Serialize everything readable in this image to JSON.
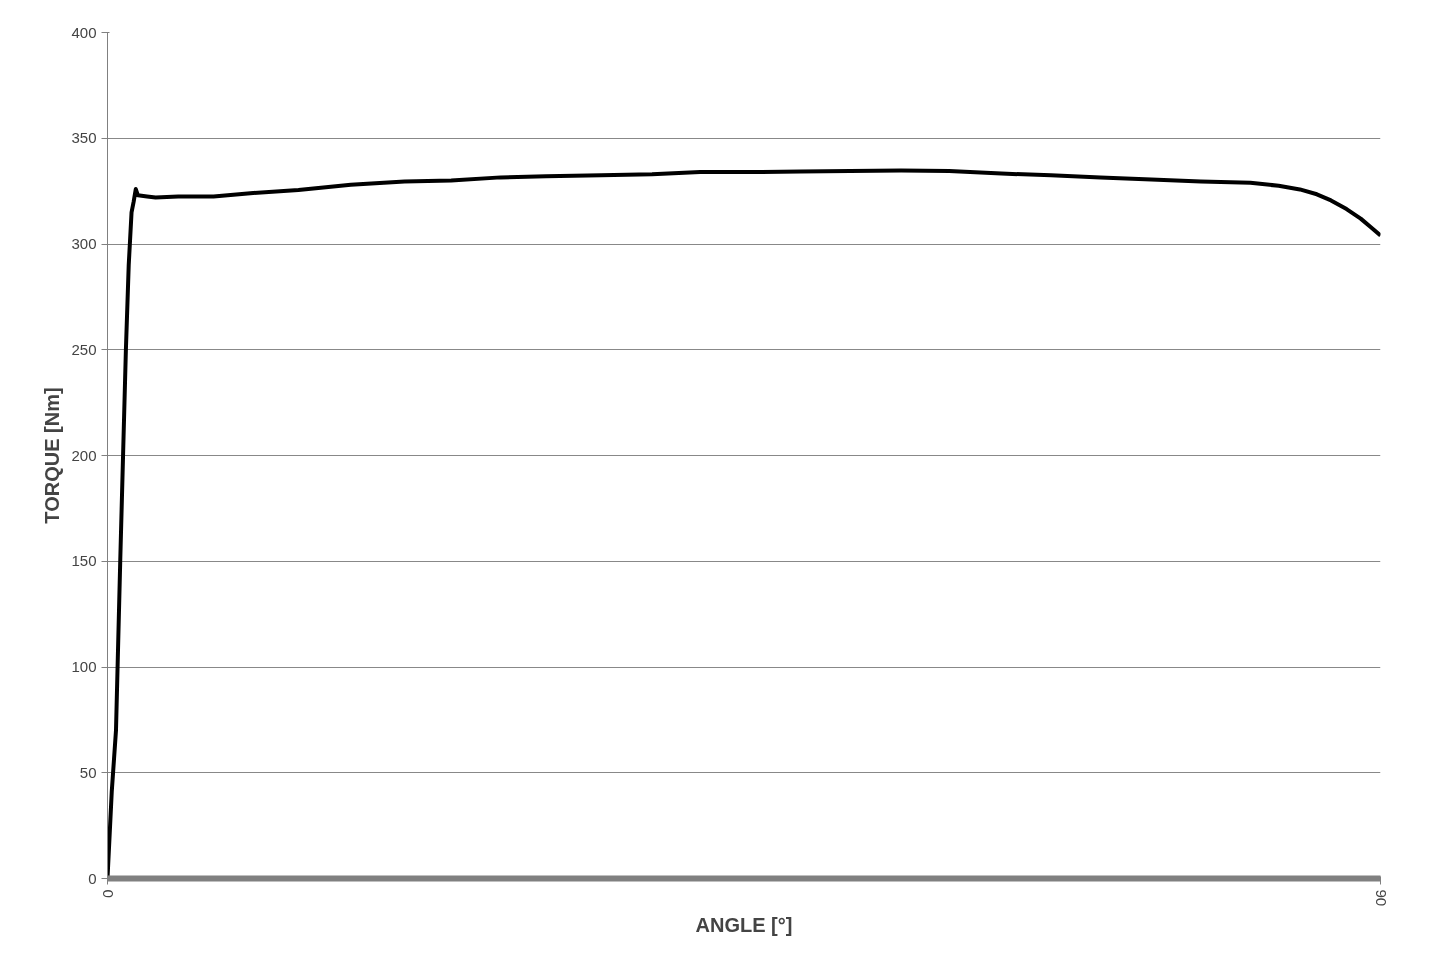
{
  "chart_data": {
    "type": "line",
    "xlabel": "ANGLE [°]",
    "ylabel": "TORQUE [Nm]",
    "xlim": [
      0,
      90
    ],
    "xticks": [
      0,
      90
    ],
    "ylim": [
      0,
      400
    ],
    "yticks": [
      0,
      50,
      100,
      150,
      200,
      250,
      300,
      350,
      400
    ],
    "grid": "y",
    "line_style": "solid",
    "series": [
      {
        "color": "#000000",
        "x": [
          0,
          0.3,
          0.6,
          0.9,
          1.1,
          1.3,
          1.5,
          1.7,
          1.85,
          2.0,
          2.15,
          2.8,
          3.4,
          5,
          7.5,
          10.1,
          13.5,
          17.2,
          21,
          24.3,
          27.8,
          31,
          34.9,
          38.5,
          41.9,
          45.5,
          49,
          52.5,
          56.1,
          59.5,
          63.2,
          66.7,
          70.2,
          73.8,
          77.3,
          80.8,
          82.8,
          84.3,
          85.5,
          86.5,
          87.6,
          88.6,
          89.3,
          90
        ],
        "values": [
          0,
          41,
          70,
          150,
          200,
          250,
          290,
          315,
          320,
          326,
          323,
          322.5,
          322,
          322.5,
          322.5,
          324,
          325.5,
          328,
          329.5,
          330,
          331.5,
          332,
          332.5,
          333,
          334,
          334,
          334.3,
          334.5,
          334.7,
          334.5,
          333.3,
          332.5,
          331.5,
          330.5,
          329.6,
          329,
          327.5,
          325.8,
          323.5,
          320.6,
          316.5,
          312,
          308,
          304
        ]
      }
    ]
  }
}
